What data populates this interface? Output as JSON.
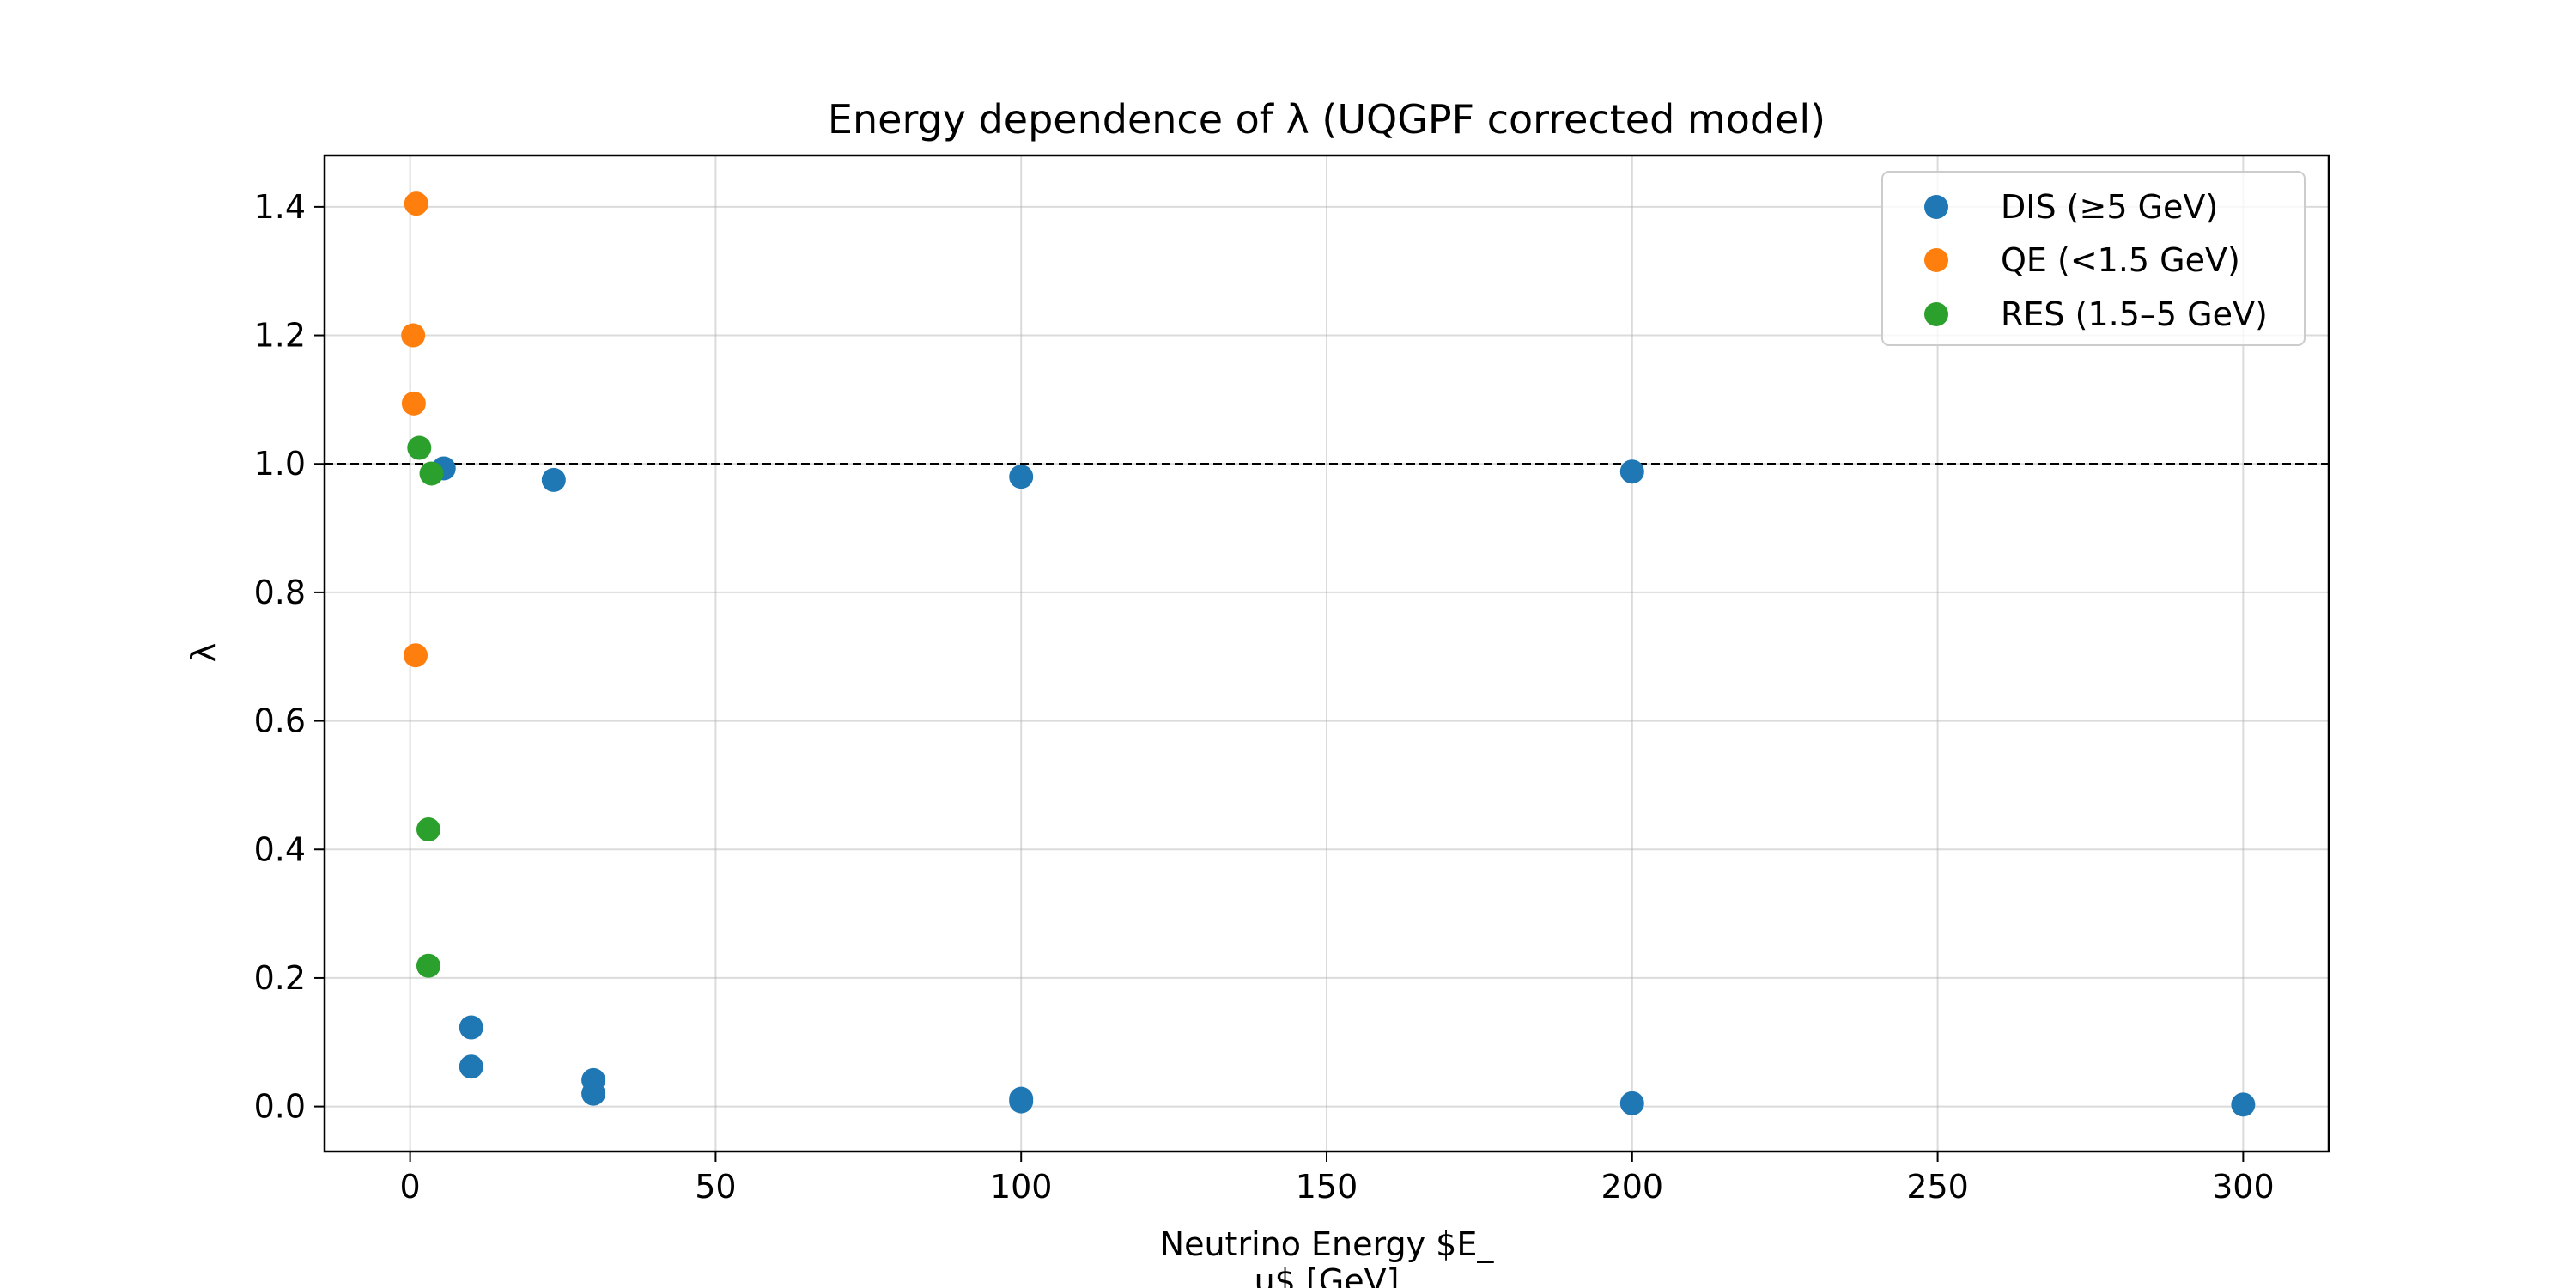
{
  "chart_data": {
    "type": "scatter",
    "title": "Energy dependence of λ (UQGPF corrected model)",
    "xlabel_lines": [
      "Neutrino Energy $E_",
      "u$ [GeV]"
    ],
    "ylabel": "λ",
    "xlim": [
      -14,
      314
    ],
    "ylim": [
      -0.07,
      1.48
    ],
    "x_ticks": [
      0,
      50,
      100,
      150,
      200,
      250,
      300
    ],
    "x_tick_labels": [
      "0",
      "50",
      "100",
      "150",
      "200",
      "250",
      "300"
    ],
    "y_ticks": [
      0.0,
      0.2,
      0.4,
      0.6,
      0.8,
      1.0,
      1.2,
      1.4
    ],
    "y_tick_labels": [
      "0.0",
      "0.2",
      "0.4",
      "0.6",
      "0.8",
      "1.0",
      "1.2",
      "1.4"
    ],
    "grid": true,
    "reference_line": {
      "y": 1.0,
      "style": "dashed",
      "color": "#000000"
    },
    "legend_position": "top-right",
    "series": [
      {
        "name": "DIS (≥5 GeV)",
        "color": "#1f77b4",
        "points": [
          {
            "x": 5.5,
            "y": 0.993
          },
          {
            "x": 23.5,
            "y": 0.975
          },
          {
            "x": 100,
            "y": 0.98
          },
          {
            "x": 200,
            "y": 0.988
          },
          {
            "x": 10,
            "y": 0.123
          },
          {
            "x": 10,
            "y": 0.062
          },
          {
            "x": 30,
            "y": 0.041
          },
          {
            "x": 30,
            "y": 0.02
          },
          {
            "x": 100,
            "y": 0.012
          },
          {
            "x": 100,
            "y": 0.008
          },
          {
            "x": 200,
            "y": 0.005
          },
          {
            "x": 300,
            "y": 0.003
          }
        ]
      },
      {
        "name": "QE (<1.5 GeV)",
        "color": "#ff7f0e",
        "points": [
          {
            "x": 1.0,
            "y": 1.405
          },
          {
            "x": 0.5,
            "y": 1.2
          },
          {
            "x": 0.6,
            "y": 1.094
          },
          {
            "x": 0.9,
            "y": 0.702
          }
        ]
      },
      {
        "name": "RES (1.5–5 GeV)",
        "color": "#2ca02c",
        "points": [
          {
            "x": 1.5,
            "y": 1.025
          },
          {
            "x": 3.5,
            "y": 0.985
          },
          {
            "x": 3.0,
            "y": 0.431
          },
          {
            "x": 3.0,
            "y": 0.219
          }
        ]
      }
    ]
  }
}
